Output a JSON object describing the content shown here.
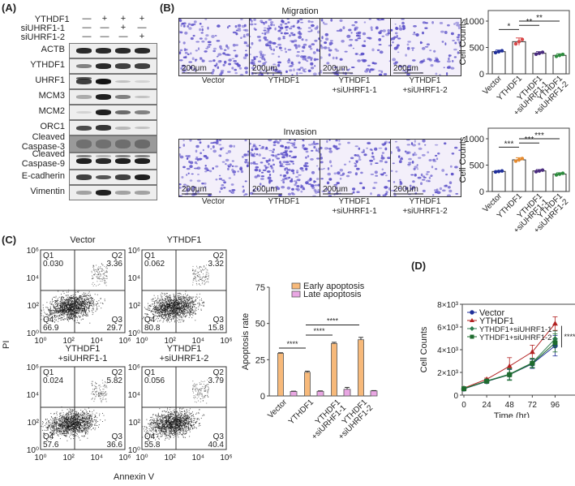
{
  "panels": {
    "A": {
      "letter": "(A)",
      "conditions": {
        "rows": [
          {
            "label": "YTHDF1",
            "signs": [
              "—",
              "+",
              "+",
              "+"
            ]
          },
          {
            "label": "siUHRF1-1",
            "signs": [
              "—",
              "—",
              "+",
              "—"
            ]
          },
          {
            "label": "siUHRF1-2",
            "signs": [
              "—",
              "—",
              "—",
              "+"
            ]
          }
        ]
      },
      "blots": [
        {
          "label": "ACTB",
          "intensity": [
            0.9,
            0.9,
            0.9,
            0.9
          ]
        },
        {
          "label": "YTHDF1",
          "intensity": [
            0.5,
            0.9,
            0.8,
            0.8
          ]
        },
        {
          "label": "UHRF1",
          "intensity": [
            0.8,
            1.0,
            0.2,
            0.1
          ]
        },
        {
          "label": "MCM3",
          "intensity": [
            0.3,
            0.95,
            0.5,
            0.2
          ]
        },
        {
          "label": "MCM2",
          "intensity": [
            0.1,
            0.95,
            0.6,
            0.5
          ]
        },
        {
          "label": "ORC1",
          "intensity": [
            0.75,
            0.85,
            0.25,
            0.2
          ]
        },
        {
          "label": "Cleaved\nCaspase-3",
          "label1": "Cleaved",
          "label2": "Caspase-3",
          "intensity": [
            0.6,
            0.6,
            0.65,
            0.7
          ]
        },
        {
          "label": "Cleaved\nCaspase-9",
          "label1": "Cleaved",
          "label2": "Caspase-9",
          "intensity": [
            0.95,
            0.9,
            0.95,
            0.95
          ]
        },
        {
          "label": "E-cadherin",
          "intensity": [
            0.8,
            0.7,
            0.8,
            0.95
          ]
        },
        {
          "label": "Vimentin",
          "intensity": [
            0.35,
            0.95,
            0.35,
            0.35
          ]
        }
      ]
    },
    "B": {
      "letter": "(B)",
      "migration_title": "Migration",
      "invasion_title": "Invasion",
      "scale_bar": "200μm",
      "image_captions": [
        {
          "line1": "Vector",
          "line2": ""
        },
        {
          "line1": "YTHDF1",
          "line2": ""
        },
        {
          "line1": "YTHDF1",
          "line2": "+siUHRF1-1"
        },
        {
          "line1": "YTHDF1",
          "line2": "+siUHRF1-2"
        }
      ]
    },
    "C": {
      "letter": "(C)",
      "ylabel": "PI",
      "xlabel": "Annexin V",
      "flow_plots": [
        {
          "title1": "Vector",
          "title2": "",
          "Q1": "0.030",
          "Q2": "3.36",
          "Q3": "29.7",
          "Q4": "66.9"
        },
        {
          "title1": "YTHDF1",
          "title2": "",
          "Q1": "0.062",
          "Q2": "3.32",
          "Q3": "15.8",
          "Q4": "80.8"
        },
        {
          "title1": "YTHDF1",
          "title2": "+siUHRF1-1",
          "Q1": "0.024",
          "Q2": "5.82",
          "Q3": "36.6",
          "Q4": "57.6"
        },
        {
          "title1": "YTHDF1",
          "title2": "+siUHRF1-2",
          "Q1": "0.056",
          "Q2": "3.79",
          "Q3": "40.4",
          "Q4": "55.8"
        }
      ],
      "quadrant_names": [
        "Q1",
        "Q2",
        "Q3",
        "Q4"
      ],
      "axis_ticks": [
        "10⁰",
        "10²",
        "10⁴",
        "10⁶"
      ]
    },
    "D": {
      "letter": "(D)"
    }
  },
  "colors": {
    "crystal_violet": "#5a4fc8",
    "vector_blue": "#1f2f9a",
    "ythdf1_red": "#b22222",
    "si1_green": "#2e7d4f",
    "si2_green": "#1e6b2e",
    "early_orange": "#f7b97a",
    "late_pink": "#e9a6e3",
    "migr_ythdf1": "#d94848",
    "migr_si1": "#4b2d7f",
    "migr_si2": "#2e8b3e",
    "inv_ythdf1": "#e58a2e"
  },
  "chart_data": [
    {
      "id": "B-migration",
      "type": "bar",
      "title": "Migration",
      "ylabel": "Cell Counts",
      "xlabel": "",
      "ylim": [
        0,
        1200
      ],
      "yticks": [
        "0",
        "500",
        "1000"
      ],
      "categories": [
        "Vector",
        "YTHDF1",
        "YTHDF1 +siUHRF1-1",
        "YTHDF1 +siUHRF1-2"
      ],
      "values": [
        420,
        610,
        390,
        350
      ],
      "errors": [
        30,
        70,
        30,
        30
      ],
      "significance": [
        {
          "from": 0,
          "to": 1,
          "label": "*"
        },
        {
          "from": 1,
          "to": 2,
          "label": "**"
        },
        {
          "from": 1,
          "to": 3,
          "label": "**"
        }
      ]
    },
    {
      "id": "B-invasion",
      "type": "bar",
      "title": "Invasion",
      "ylabel": "Cell Counts",
      "xlabel": "",
      "ylim": [
        0,
        1200
      ],
      "yticks": [
        "0",
        "500",
        "1000"
      ],
      "categories": [
        "Vector",
        "YTHDF1",
        "YTHDF1 +siUHRF1-1",
        "YTHDF1 +siUHRF1-2"
      ],
      "values": [
        380,
        600,
        390,
        330
      ],
      "errors": [
        15,
        40,
        25,
        25
      ],
      "significance": [
        {
          "from": 0,
          "to": 1,
          "label": "***"
        },
        {
          "from": 1,
          "to": 2,
          "label": "***"
        },
        {
          "from": 1,
          "to": 3,
          "label": "***"
        }
      ]
    },
    {
      "id": "C-apoptosis",
      "type": "bar",
      "title": "",
      "ylabel": "Apoptosis rate",
      "xlabel": "",
      "ylim": [
        0,
        75
      ],
      "yticks": [
        "0",
        "25",
        "50",
        "75"
      ],
      "categories": [
        "Vector",
        "YTHDF1",
        "YTHDF1 +siURHF1-1",
        "YTHDF1 +siUHRF1-2"
      ],
      "series": [
        {
          "name": "Early apoptosis",
          "values": [
            29.4,
            16.3,
            36.2,
            38.8
          ],
          "errors": [
            0.4,
            0.8,
            0.8,
            1.6
          ]
        },
        {
          "name": "Late apoptosis",
          "values": [
            3.1,
            3.2,
            4.6,
            3.5
          ],
          "errors": [
            0.2,
            0.3,
            1.3,
            0.2
          ]
        }
      ],
      "legend_position": "top",
      "significance": [
        {
          "from": 0,
          "to": 1,
          "label": "****"
        },
        {
          "from": 1,
          "to": 2,
          "label": "****"
        },
        {
          "from": 1,
          "to": 3,
          "label": "****"
        }
      ]
    },
    {
      "id": "D-growth",
      "type": "line",
      "title": "",
      "xlabel": "Time (hr)",
      "ylabel": "Cell Counts",
      "x": [
        0,
        24,
        48,
        72,
        96
      ],
      "xticks": [
        "0",
        "24",
        "48",
        "72",
        "96"
      ],
      "ylim": [
        0,
        8000
      ],
      "yticks": [
        "0",
        "2×10³",
        "4×10³",
        "6×10³",
        "8×10³"
      ],
      "legend_position": "upper left",
      "series": [
        {
          "name": "Vector",
          "values": [
            550,
            1200,
            1800,
            2750,
            4350
          ],
          "errors": [
            80,
            100,
            450,
            400,
            900
          ]
        },
        {
          "name": "YTHDF1",
          "values": [
            620,
            1400,
            2550,
            3800,
            6300
          ],
          "errors": [
            80,
            100,
            750,
            600,
            600
          ]
        },
        {
          "name": "YTHDF1+siUHRF1-1",
          "values": [
            580,
            1250,
            1850,
            2850,
            4950
          ],
          "errors": [
            80,
            100,
            500,
            400,
            700
          ]
        },
        {
          "name": "YTHDF1+siUHRF1-2",
          "values": [
            560,
            1220,
            1800,
            2800,
            4600
          ],
          "errors": [
            80,
            100,
            500,
            400,
            800
          ]
        }
      ],
      "annotations": [
        {
          "label": "****",
          "x": 96
        }
      ]
    }
  ]
}
